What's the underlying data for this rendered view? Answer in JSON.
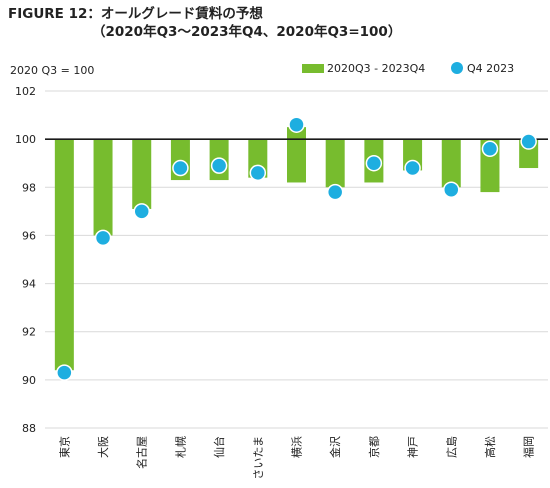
{
  "chart_data": {
    "type": "bar",
    "title": "FIGURE 12：オールグレード賃料の予想",
    "subtitle": "（2020年Q3～2023年Q4、2020年Q3=100）",
    "ylabel": "2020 Q3 = 100",
    "xlabel": "",
    "ylim": [
      88,
      102
    ],
    "yticks": [
      88,
      90,
      92,
      94,
      96,
      98,
      100,
      102
    ],
    "baseline": 100,
    "grid": true,
    "legend_position": "top-right",
    "categories": [
      "東京",
      "大阪",
      "名古屋",
      "札幌",
      "仙台",
      "さいたま",
      "横浜",
      "金沢",
      "京都",
      "神戸",
      "広島",
      "高松",
      "福岡"
    ],
    "series": [
      {
        "name": "2020Q3 - 2023Q4",
        "kind": "range-bar",
        "color": "#77bc2e",
        "low": [
          90.4,
          96.0,
          97.1,
          98.3,
          98.3,
          98.4,
          98.2,
          98.0,
          98.2,
          98.7,
          98.0,
          97.8,
          98.8
        ],
        "high": [
          100.0,
          100.0,
          100.0,
          100.0,
          100.0,
          100.0,
          100.5,
          100.0,
          100.0,
          100.0,
          100.0,
          100.0,
          100.0
        ]
      },
      {
        "name": "Q4 2023",
        "kind": "marker",
        "color": "#1eaee0",
        "values": [
          90.3,
          95.9,
          97.0,
          98.8,
          98.9,
          98.6,
          100.6,
          97.8,
          99.0,
          98.8,
          97.9,
          99.6,
          99.9
        ]
      }
    ]
  }
}
